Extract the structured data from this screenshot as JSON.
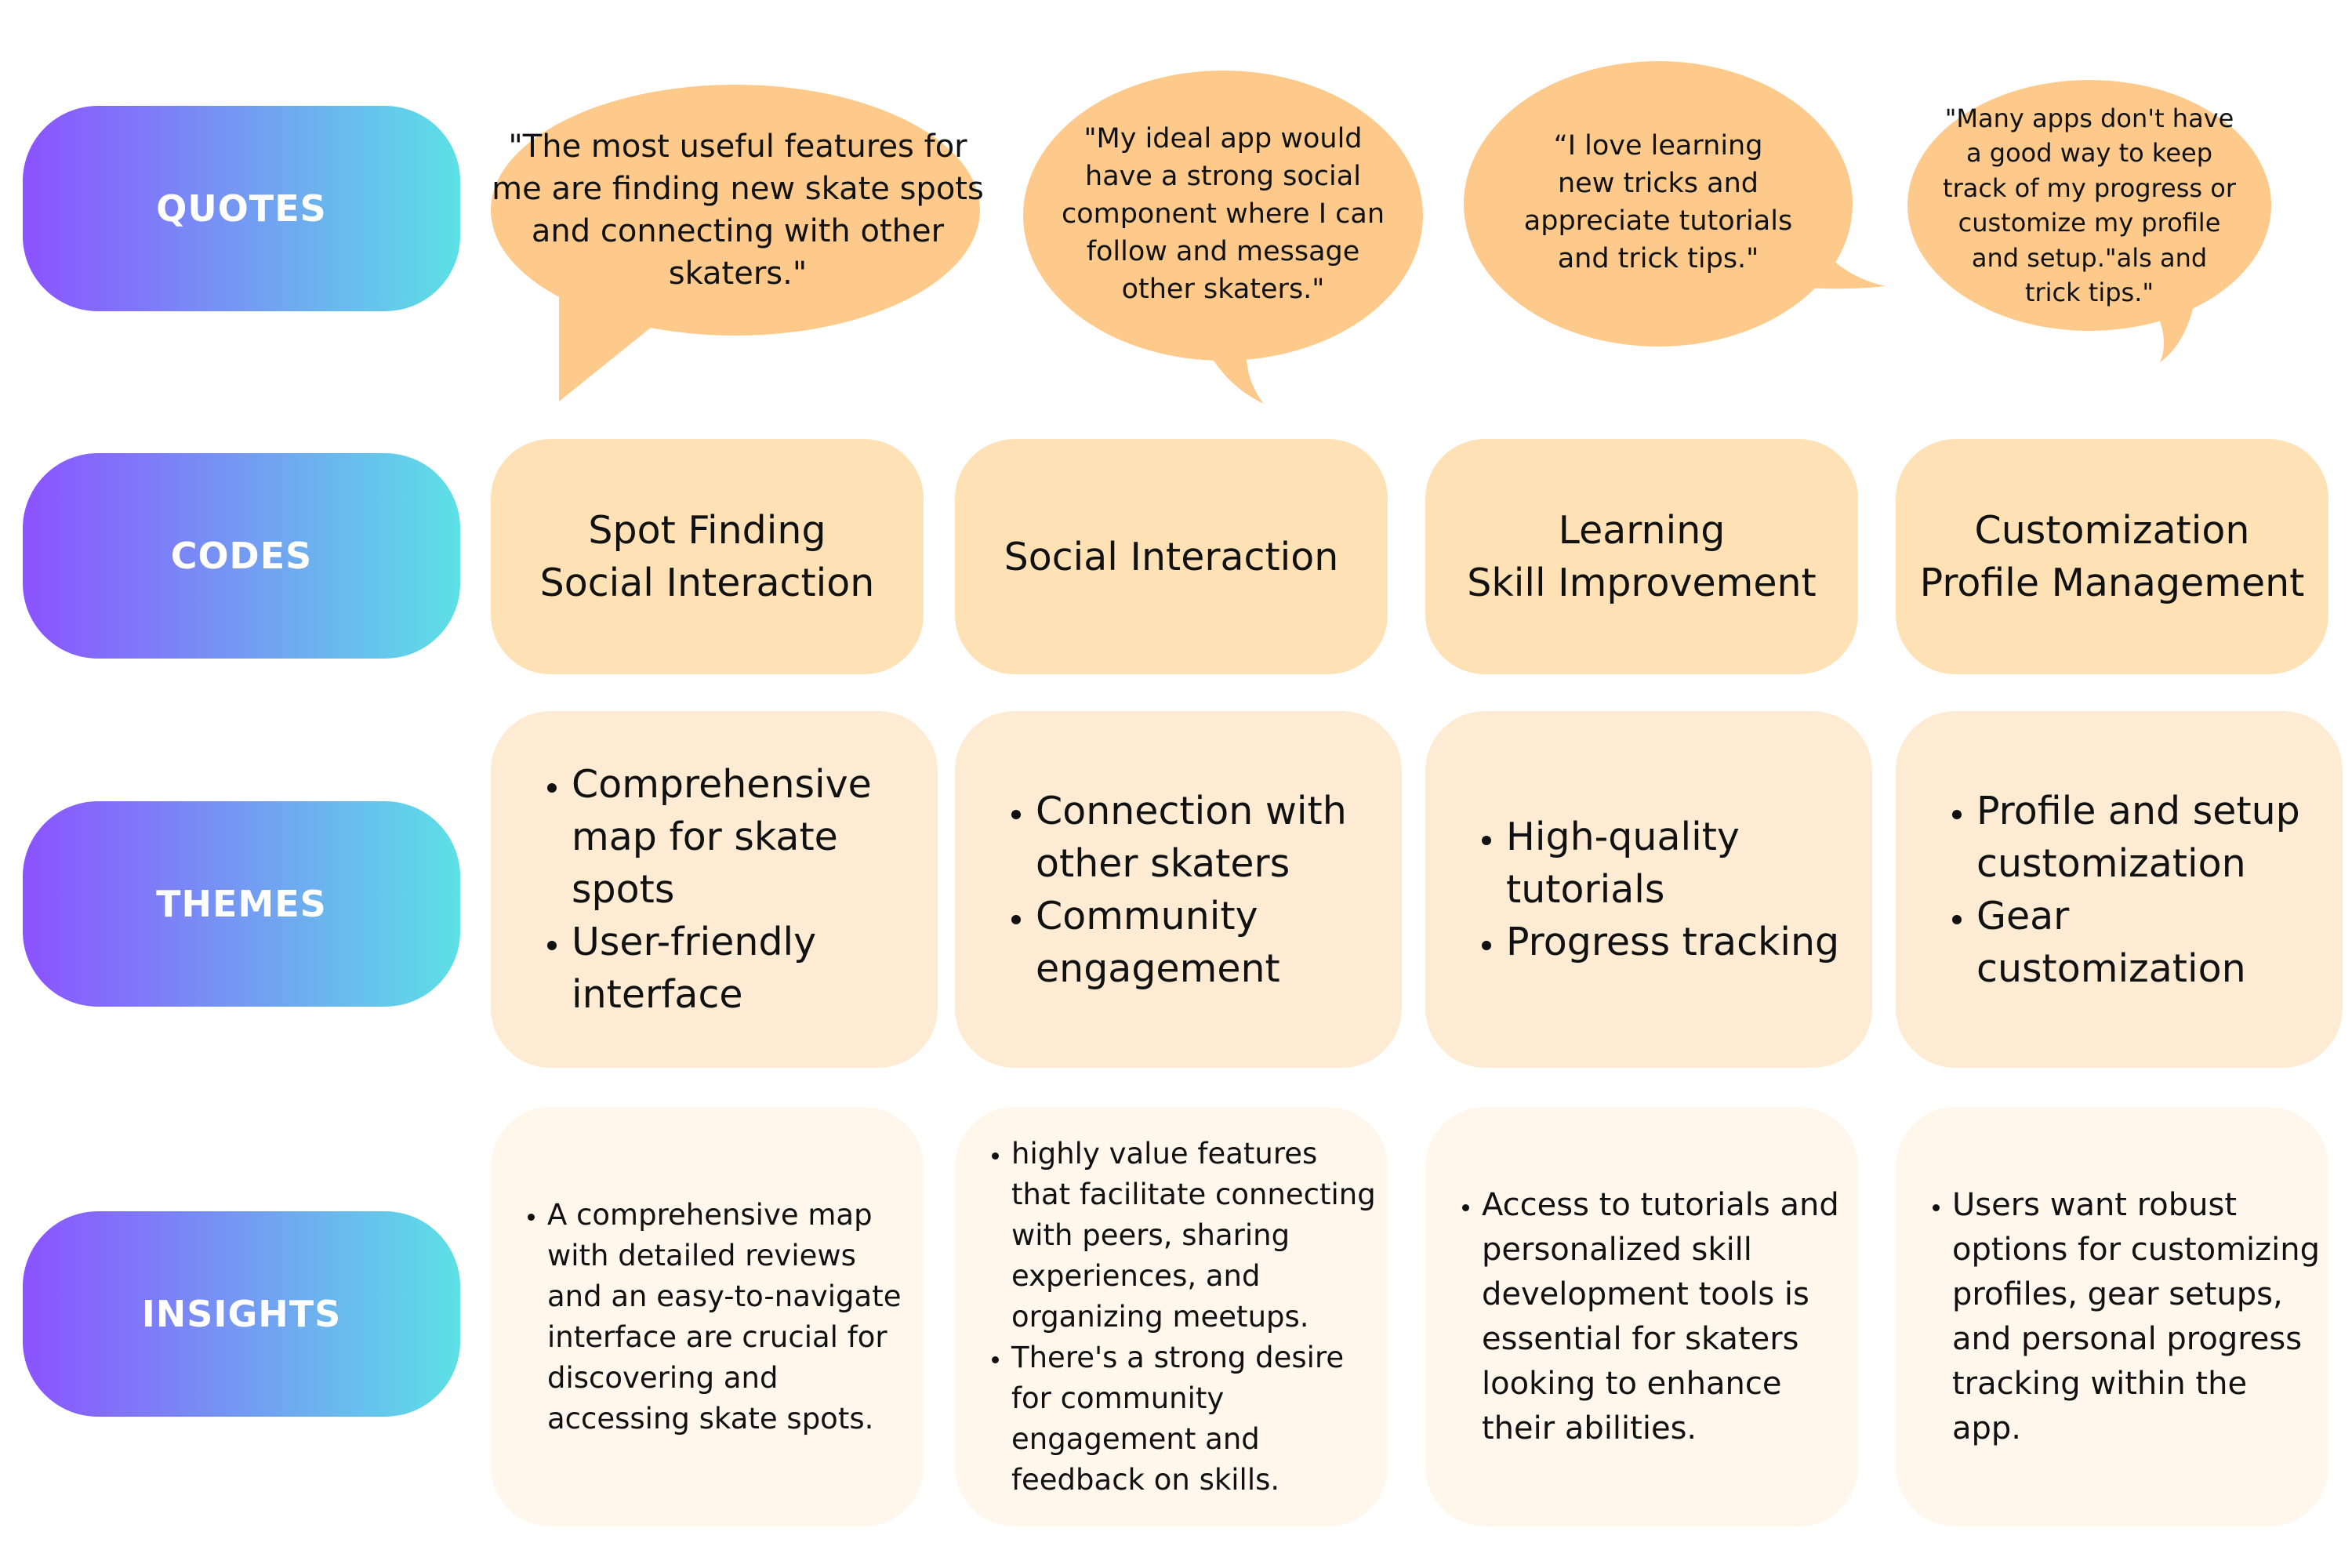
{
  "labels": {
    "quotes": "QUOTES",
    "codes": "CODES",
    "themes": "THEMES",
    "insights": "INSIGHTS"
  },
  "quotes": [
    "\"The most useful features for me are finding new skate spots and connecting with other skaters.\"",
    "\"My ideal app would have a strong social component where I can follow and message other skaters.\"",
    "“I love learning new tricks and appreciate tutorials and trick tips.\"",
    "\"Many apps don't have a good way to keep track of my progress or customize my profile and setup.\"als and trick tips.\""
  ],
  "codes": [
    [
      "Spot Finding",
      "Social Interaction"
    ],
    [
      "Social Interaction"
    ],
    [
      "Learning",
      "Skill Improvement"
    ],
    [
      "Customization",
      "Profile Management"
    ]
  ],
  "themes": [
    [
      "Comprehensive map for skate spots",
      "User-friendly interface"
    ],
    [
      "Connection with other skaters",
      "Community engagement"
    ],
    [
      "High-quality tutorials",
      "Progress tracking"
    ],
    [
      "Profile and setup customization",
      "Gear customization"
    ]
  ],
  "insights": [
    [
      "A comprehensive map with detailed reviews and an easy-to-navigate interface are crucial for discovering and accessing skate spots."
    ],
    [
      "highly value features that facilitate connecting with peers, sharing experiences, and organizing meetups.",
      "There's a strong desire for community engagement and feedback on skills."
    ],
    [
      "Access to tutorials and personalized skill development tools is essential for skaters looking to enhance their abilities."
    ],
    [
      "Users want robust options for customizing profiles, gear setups, and personal progress tracking within the app."
    ]
  ],
  "colors": {
    "pill_gradient_start": "#8c52ff",
    "pill_gradient_end": "#5ce1e6",
    "bubble": "#fdca8b",
    "code_card": "#ffe1b6",
    "theme_card": "#fdecd3",
    "insight_card": "#fff7ec"
  }
}
